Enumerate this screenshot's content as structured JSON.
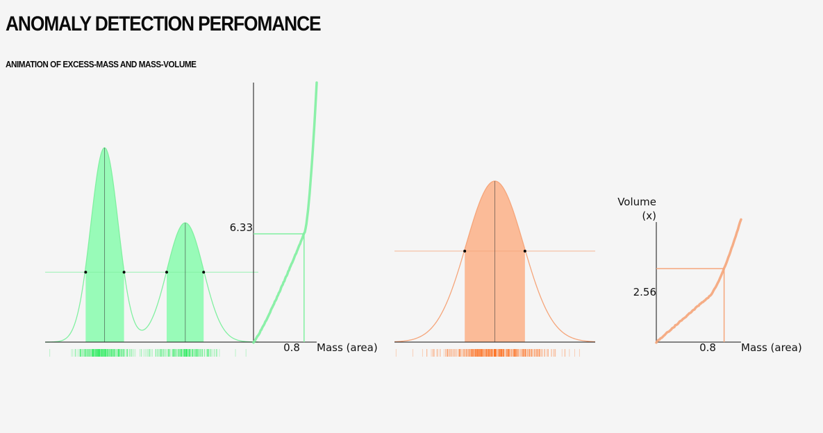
{
  "header": {
    "title": "ANOMALY DETECTION PERFOMANCE",
    "subtitle": "ANIMATION OF EXCESS-MASS AND MASS-VOLUME"
  },
  "colors": {
    "green_fill": "#98fbb8",
    "green_line": "#80f0a0",
    "green_rug": "#22ee55",
    "orange_fill": "#fbbb98",
    "orange_line": "#f5a57a",
    "orange_rug": "#ff6a1a",
    "axis": "#111111"
  },
  "chart_data": [
    {
      "id": "bimodal-density",
      "type": "area",
      "description_free": true,
      "x": [
        -3.5,
        3.5
      ],
      "modes": [
        {
          "mu": -1.55,
          "sigma": 0.45,
          "weight": 0.55
        },
        {
          "mu": 1.1,
          "sigma": 0.6,
          "weight": 0.45
        }
      ],
      "threshold_fraction": 0.36,
      "level_points": 4,
      "rug": "samples"
    },
    {
      "id": "curve-left",
      "type": "line",
      "xlabel": "Mass (area)",
      "ylabel": "",
      "marked_x_label": "0.8",
      "marked_y_label": "6.33",
      "marked_x": 0.8,
      "marked_y": 6.33,
      "x_range": [
        0,
        1
      ]
    },
    {
      "id": "gaussian-density",
      "type": "area",
      "x": [
        -3.5,
        3.5
      ],
      "modes": [
        {
          "mu": 0,
          "sigma": 1.0,
          "weight": 1.0
        }
      ],
      "threshold_fraction": 0.565,
      "level_points": 2,
      "rug": "samples"
    },
    {
      "id": "curve-right",
      "type": "line",
      "xlabel": "Mass (area)",
      "ylabel": "Volume (x)",
      "ylabel_line1": "Volume",
      "ylabel_line2": "(x)",
      "marked_x_label": "0.8",
      "marked_y_label": "2.56",
      "marked_x": 0.8,
      "marked_y": 2.56,
      "x_range": [
        0,
        1
      ]
    }
  ]
}
